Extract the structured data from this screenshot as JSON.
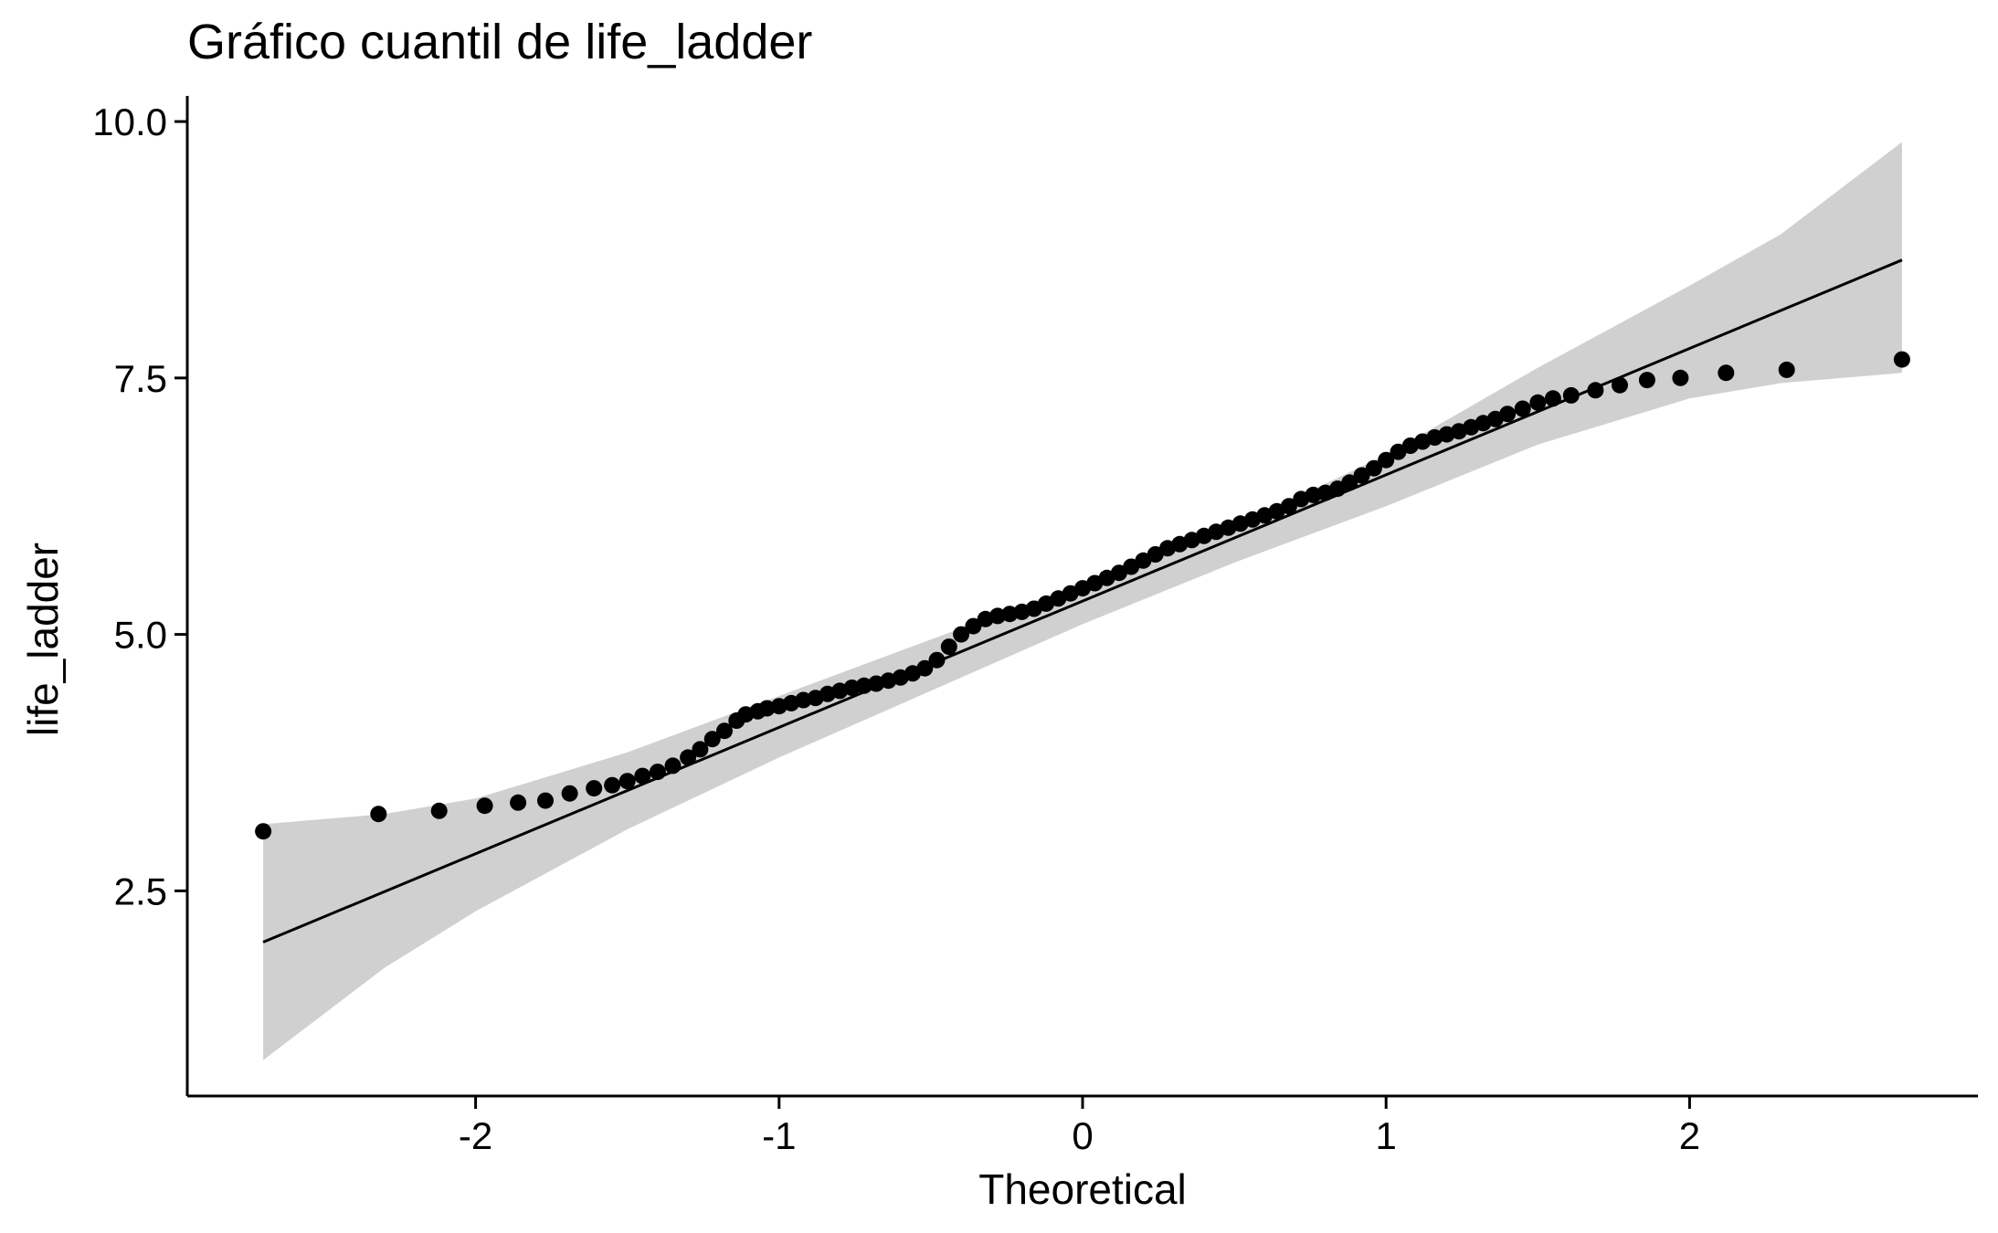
{
  "chart_data": {
    "type": "scatter",
    "title": "Gráfico cuantil de life_ladder",
    "xlabel": "Theoretical",
    "ylabel": "life_ladder",
    "xlim": [
      -2.95,
      2.95
    ],
    "ylim": [
      0.5,
      10.25
    ],
    "x_ticks": [
      -2,
      -1,
      0,
      1,
      2
    ],
    "x_tick_labels": [
      "-2",
      "-1",
      "0",
      "1",
      "2"
    ],
    "y_ticks": [
      2.5,
      5.0,
      7.5,
      10.0
    ],
    "y_tick_labels": [
      "2.5",
      "5.0",
      "7.5",
      "10.0"
    ],
    "grid": false,
    "legend": "none",
    "colors": {
      "points": "#000000",
      "line": "#000000",
      "band": "#d0d0d0"
    },
    "reference_line": {
      "x": [
        -2.7,
        2.7
      ],
      "y": [
        2.0,
        8.65
      ]
    },
    "confidence_band": {
      "x": [
        -2.7,
        -2.3,
        -2.0,
        -1.5,
        -1.0,
        -0.5,
        0.0,
        0.5,
        1.0,
        1.5,
        2.0,
        2.3,
        2.7
      ],
      "upper": [
        3.15,
        3.25,
        3.4,
        3.85,
        4.4,
        4.95,
        5.5,
        6.05,
        6.75,
        7.6,
        8.4,
        8.9,
        9.8
      ],
      "lower": [
        0.85,
        1.75,
        2.3,
        3.1,
        3.8,
        4.45,
        5.1,
        5.7,
        6.25,
        6.85,
        7.3,
        7.45,
        7.55
      ]
    },
    "series": [
      {
        "x": [
          -2.7,
          -2.32,
          -2.12,
          -1.97,
          -1.86,
          -1.77,
          -1.69,
          -1.61,
          -1.55,
          -1.5,
          -1.45,
          -1.4,
          -1.35,
          -1.3,
          -1.26,
          -1.22,
          -1.18,
          -1.14,
          -1.11,
          -1.07,
          -1.04,
          -1.0,
          -0.96,
          -0.92,
          -0.88,
          -0.84,
          -0.8,
          -0.76,
          -0.72,
          -0.68,
          -0.64,
          -0.6,
          -0.56,
          -0.52,
          -0.48,
          -0.44,
          -0.4,
          -0.36,
          -0.32,
          -0.28,
          -0.24,
          -0.2,
          -0.16,
          -0.12,
          -0.08,
          -0.04,
          0.0,
          0.04,
          0.08,
          0.12,
          0.16,
          0.2,
          0.24,
          0.28,
          0.32,
          0.36,
          0.4,
          0.44,
          0.48,
          0.52,
          0.56,
          0.6,
          0.64,
          0.68,
          0.72,
          0.76,
          0.8,
          0.84,
          0.88,
          0.92,
          0.96,
          1.0,
          1.04,
          1.08,
          1.12,
          1.16,
          1.2,
          1.24,
          1.28,
          1.32,
          1.36,
          1.4,
          1.45,
          1.5,
          1.55,
          1.61,
          1.69,
          1.77,
          1.86,
          1.97,
          2.12,
          2.32,
          2.7
        ],
        "y": [
          3.08,
          3.25,
          3.28,
          3.33,
          3.36,
          3.38,
          3.45,
          3.5,
          3.53,
          3.57,
          3.62,
          3.66,
          3.72,
          3.8,
          3.88,
          3.98,
          4.06,
          4.16,
          4.22,
          4.25,
          4.28,
          4.3,
          4.33,
          4.36,
          4.38,
          4.42,
          4.45,
          4.48,
          4.5,
          4.52,
          4.55,
          4.58,
          4.62,
          4.67,
          4.75,
          4.88,
          5.0,
          5.08,
          5.15,
          5.18,
          5.2,
          5.22,
          5.25,
          5.3,
          5.35,
          5.4,
          5.45,
          5.5,
          5.55,
          5.6,
          5.66,
          5.72,
          5.78,
          5.84,
          5.88,
          5.92,
          5.96,
          6.0,
          6.04,
          6.08,
          6.12,
          6.16,
          6.2,
          6.25,
          6.32,
          6.36,
          6.38,
          6.42,
          6.48,
          6.55,
          6.62,
          6.7,
          6.78,
          6.84,
          6.88,
          6.92,
          6.95,
          6.98,
          7.02,
          7.06,
          7.1,
          7.15,
          7.2,
          7.26,
          7.3,
          7.33,
          7.38,
          7.43,
          7.48,
          7.5,
          7.55,
          7.58,
          7.68
        ]
      }
    ]
  }
}
